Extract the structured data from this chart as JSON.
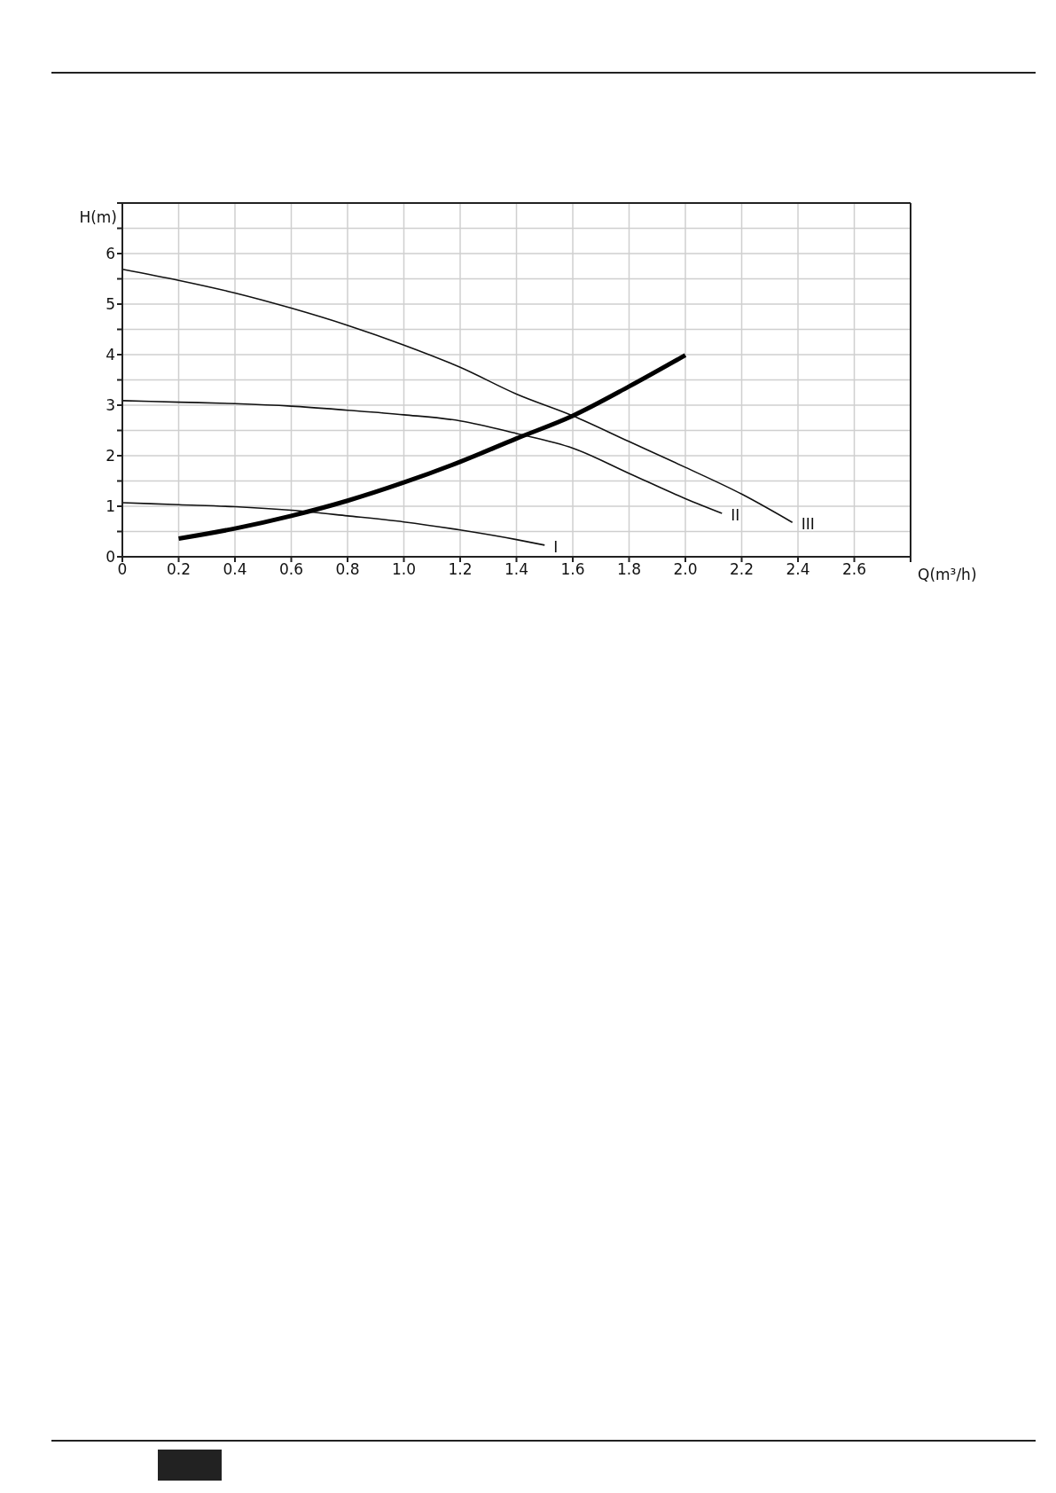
{
  "chart_data": {
    "type": "line",
    "xlabel": "Q(m³/h)",
    "ylabel": "H(m)",
    "xlim": [
      0,
      2.8
    ],
    "ylim": [
      0,
      7
    ],
    "xticks": [
      0,
      0.2,
      0.4,
      0.6,
      0.8,
      {
        "value": 1,
        "label": "1.0"
      },
      1.2,
      1.4,
      1.6,
      1.8,
      {
        "value": 2,
        "label": "2.0"
      },
      2.2,
      2.4,
      2.6,
      {
        "value": 2.8,
        "label": null
      }
    ],
    "yticks": [
      0,
      {
        "value": 0.5,
        "label": null
      },
      1,
      {
        "value": 1.5,
        "label": null
      },
      2,
      {
        "value": 2.5,
        "label": null
      },
      3,
      {
        "value": 3.5,
        "label": null
      },
      4,
      {
        "value": 4.5,
        "label": null
      },
      5,
      {
        "value": 5.5,
        "label": null
      },
      6,
      {
        "value": 6.5,
        "label": null
      },
      {
        "value": 7,
        "label": null
      }
    ],
    "grid": true,
    "marker": "none",
    "line_style": "solid",
    "series": [
      {
        "name": "I",
        "color": "#111111",
        "x": [
          0,
          0.2,
          0.4,
          0.6,
          0.8,
          1.0,
          1.2,
          1.4,
          1.5
        ],
        "values": [
          1.07,
          1.03,
          0.99,
          0.92,
          0.81,
          0.69,
          0.53,
          0.34,
          0.23
        ]
      },
      {
        "name": "II",
        "color": "#111111",
        "x": [
          0,
          0.2,
          0.4,
          0.6,
          0.8,
          1.0,
          1.2,
          1.4,
          1.6,
          1.8,
          2.0,
          2.13
        ],
        "values": [
          3.09,
          3.06,
          3.03,
          2.98,
          2.9,
          2.81,
          2.69,
          2.44,
          2.15,
          1.65,
          1.15,
          0.86
        ]
      },
      {
        "name": "III",
        "color": "#111111",
        "x": [
          0,
          0.2,
          0.4,
          0.6,
          0.8,
          1.0,
          1.2,
          1.4,
          1.6,
          1.8,
          2.0,
          2.2,
          2.38
        ],
        "values": [
          5.69,
          5.47,
          5.22,
          4.92,
          4.58,
          4.19,
          3.75,
          3.22,
          2.79,
          2.28,
          1.77,
          1.24,
          0.68
        ]
      },
      {
        "color": "#000000",
        "x": [
          0.2,
          0.4,
          0.6,
          0.8,
          1.0,
          1.2,
          1.4,
          1.6,
          1.8,
          2.0
        ],
        "values": [
          0.36,
          0.56,
          0.81,
          1.11,
          1.47,
          1.88,
          2.34,
          2.79,
          3.37,
          3.99
        ]
      }
    ]
  }
}
